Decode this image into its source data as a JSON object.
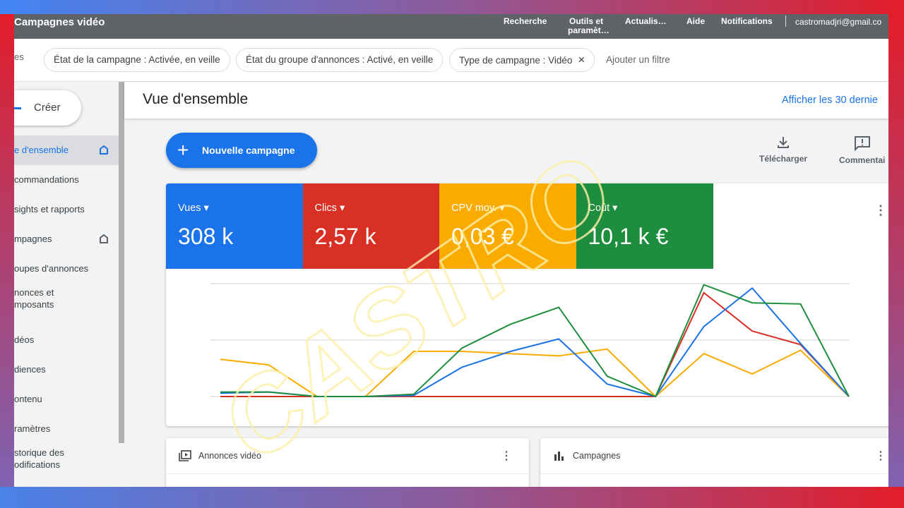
{
  "topbar": {
    "title": "Campagnes vidéo",
    "nav": [
      "Recherche",
      "Outils et paramèt…",
      "Actualis…",
      "Aide",
      "Notifications"
    ],
    "account": "castromadjri@gmail.co"
  },
  "filters": {
    "label": "es",
    "chips": [
      "État de la campagne : Activée, en veille",
      "État du groupe d'annonces : Activé, en veille",
      "Type de campagne : Vidéo"
    ],
    "close_icon": "×",
    "add_filter": "Ajouter un filtre"
  },
  "sidebar": {
    "create": "Créer",
    "items": [
      {
        "label": "e d'ensemble",
        "active": true,
        "home": true
      },
      {
        "label": "commandations"
      },
      {
        "label": "sights et rapports"
      },
      {
        "label": "mpagnes",
        "home": true
      },
      {
        "label": "oupes d'annonces"
      },
      {
        "label": "nonces et\nmposants"
      },
      {
        "label": "déos"
      },
      {
        "label": "diences"
      },
      {
        "label": "ontenu"
      },
      {
        "label": "ramètres"
      },
      {
        "label": "storique des\nodifications"
      }
    ]
  },
  "main": {
    "title": "Vue d'ensemble",
    "date_link": "Afficher les 30 dernie",
    "new_campaign": "Nouvelle campagne",
    "download": "Télécharger",
    "feedback": "Commentai"
  },
  "metrics": [
    {
      "label": "Vues",
      "value": "308 k",
      "color": "#1a73e8"
    },
    {
      "label": "Clics",
      "value": "2,57 k",
      "color": "#d93025"
    },
    {
      "label": "CPV moy.",
      "value": "0,03 €",
      "color": "#f9ab00"
    },
    {
      "label": "Coût",
      "value": "10,1 k €",
      "color": "#1e8e3e"
    }
  ],
  "chart_data": {
    "type": "line",
    "grid": true,
    "ylim": [
      0,
      100
    ],
    "series": [
      {
        "name": "Vues",
        "color": "#1a73e8",
        "values": [
          3,
          4,
          0,
          0,
          1,
          26,
          40,
          51,
          11,
          0,
          62,
          96,
          47,
          0
        ]
      },
      {
        "name": "Clics",
        "color": "#d93025",
        "values": [
          0,
          0,
          0,
          0,
          0,
          0,
          0,
          0,
          0,
          0,
          92,
          58,
          46,
          0
        ]
      },
      {
        "name": "CPV moy.",
        "color": "#f9ab00",
        "values": [
          33,
          28,
          0,
          0,
          40,
          40,
          38,
          36,
          42,
          0,
          38,
          20,
          41,
          0
        ]
      },
      {
        "name": "Coût",
        "color": "#1e8e3e",
        "values": [
          4,
          4,
          0,
          0,
          2,
          43,
          64,
          79,
          18,
          0,
          99,
          83,
          82,
          0
        ]
      }
    ]
  },
  "panels": [
    {
      "title": "Annonces vidéo"
    },
    {
      "title": "Campagnes"
    }
  ],
  "watermark": "CASTRO"
}
